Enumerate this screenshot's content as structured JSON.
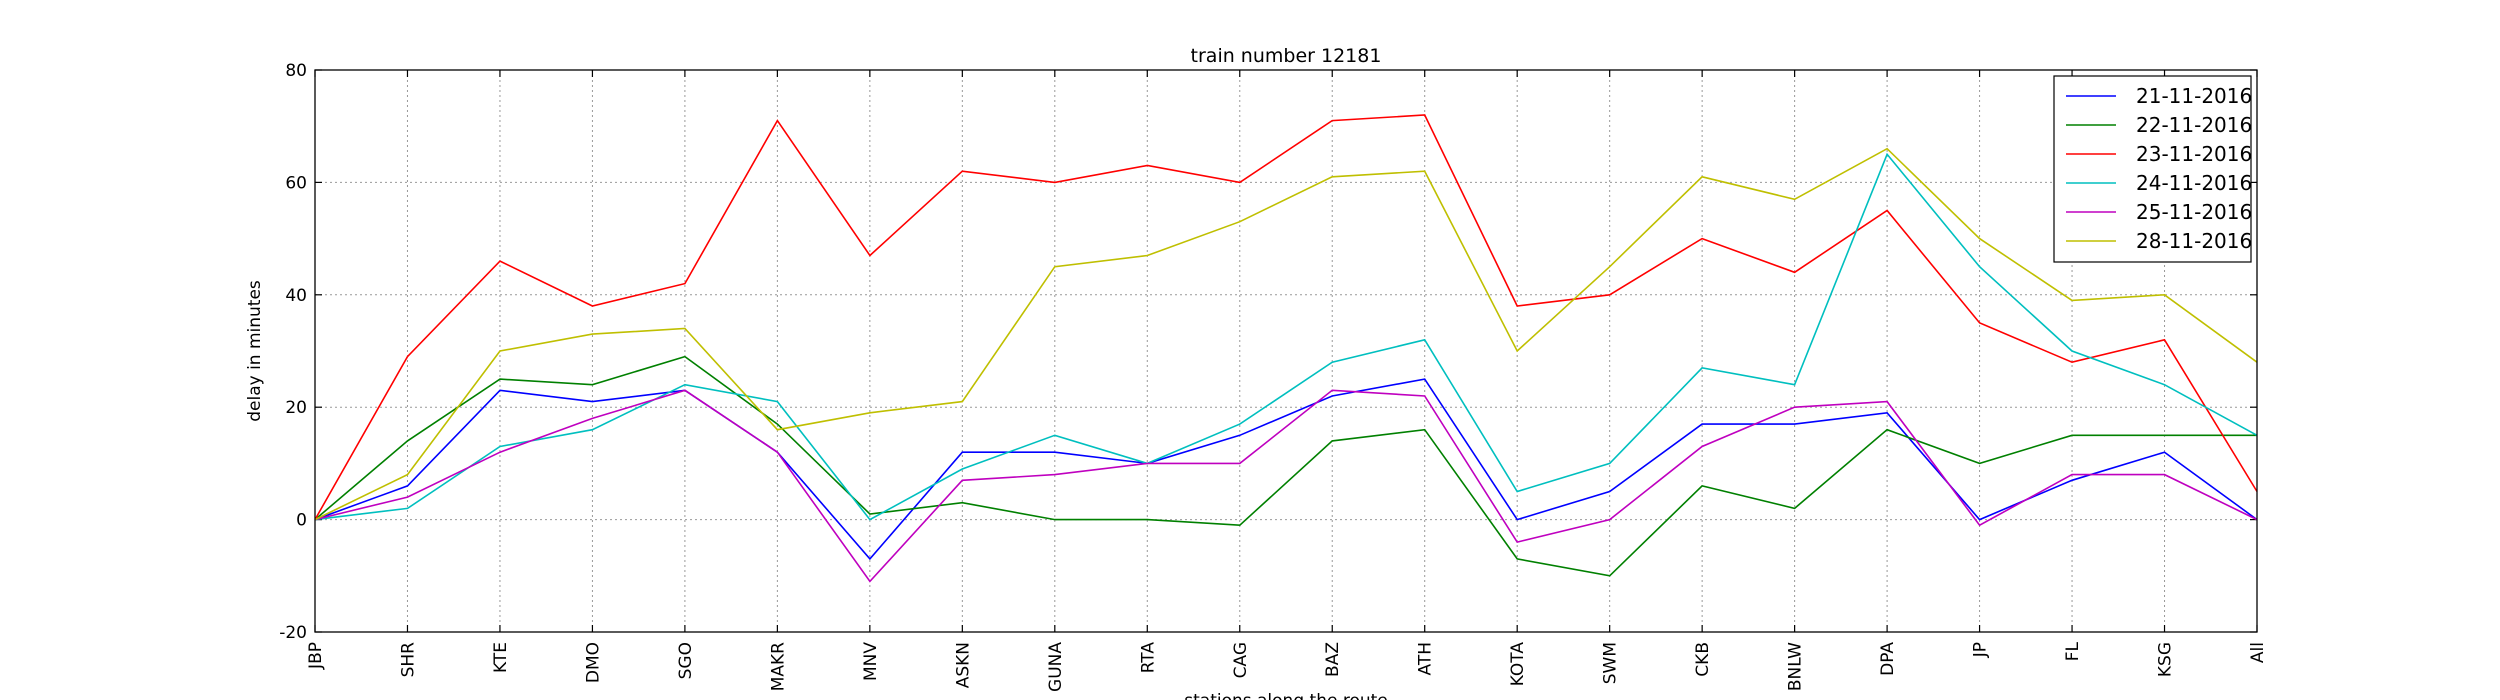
{
  "chart_data": {
    "type": "line",
    "title": "train number 12181",
    "xlabel": "stations along the route",
    "ylabel": "delay in minutes",
    "ylim": [
      -20,
      80
    ],
    "yticks": [
      -20,
      0,
      20,
      40,
      60,
      80
    ],
    "grid": true,
    "legend_position": "top-right",
    "categories": [
      "JBP",
      "SHR",
      "KTE",
      "DMO",
      "SGO",
      "MAKR",
      "MNV",
      "ASKN",
      "GUNA",
      "RTA",
      "CAG",
      "BAZ",
      "ATH",
      "KOTA",
      "SWM",
      "CKB",
      "BNLW",
      "DPA",
      "JP",
      "FL",
      "KSG",
      "All"
    ],
    "series": [
      {
        "name": "21-11-2016",
        "color": "#0000ff",
        "values": [
          0,
          6,
          23,
          21,
          23,
          12,
          -7,
          12,
          12,
          10,
          15,
          22,
          25,
          0,
          5,
          17,
          17,
          19,
          0,
          7,
          12,
          0
        ]
      },
      {
        "name": "22-11-2016",
        "color": "#008000",
        "values": [
          0,
          14,
          25,
          24,
          29,
          17,
          1,
          3,
          0,
          0,
          -1,
          14,
          16,
          -7,
          -10,
          6,
          2,
          16,
          10,
          15,
          15,
          15
        ]
      },
      {
        "name": "23-11-2016",
        "color": "#ff0000",
        "values": [
          0,
          29,
          46,
          38,
          42,
          71,
          47,
          62,
          60,
          63,
          60,
          71,
          72,
          38,
          40,
          50,
          44,
          55,
          35,
          28,
          32,
          5
        ]
      },
      {
        "name": "24-11-2016",
        "color": "#00bfbf",
        "values": [
          0,
          2,
          13,
          16,
          24,
          21,
          0,
          9,
          15,
          10,
          17,
          28,
          32,
          5,
          10,
          27,
          24,
          65,
          45,
          30,
          24,
          15
        ]
      },
      {
        "name": "25-11-2016",
        "color": "#bf00bf",
        "values": [
          0,
          4,
          12,
          18,
          23,
          12,
          -11,
          7,
          8,
          10,
          10,
          23,
          22,
          -4,
          0,
          13,
          20,
          21,
          -1,
          8,
          8,
          0
        ]
      },
      {
        "name": "28-11-2016",
        "color": "#bfbf00",
        "values": [
          0,
          8,
          30,
          33,
          34,
          16,
          19,
          21,
          45,
          47,
          53,
          61,
          62,
          30,
          45,
          61,
          57,
          66,
          50,
          39,
          40,
          28
        ]
      }
    ]
  }
}
